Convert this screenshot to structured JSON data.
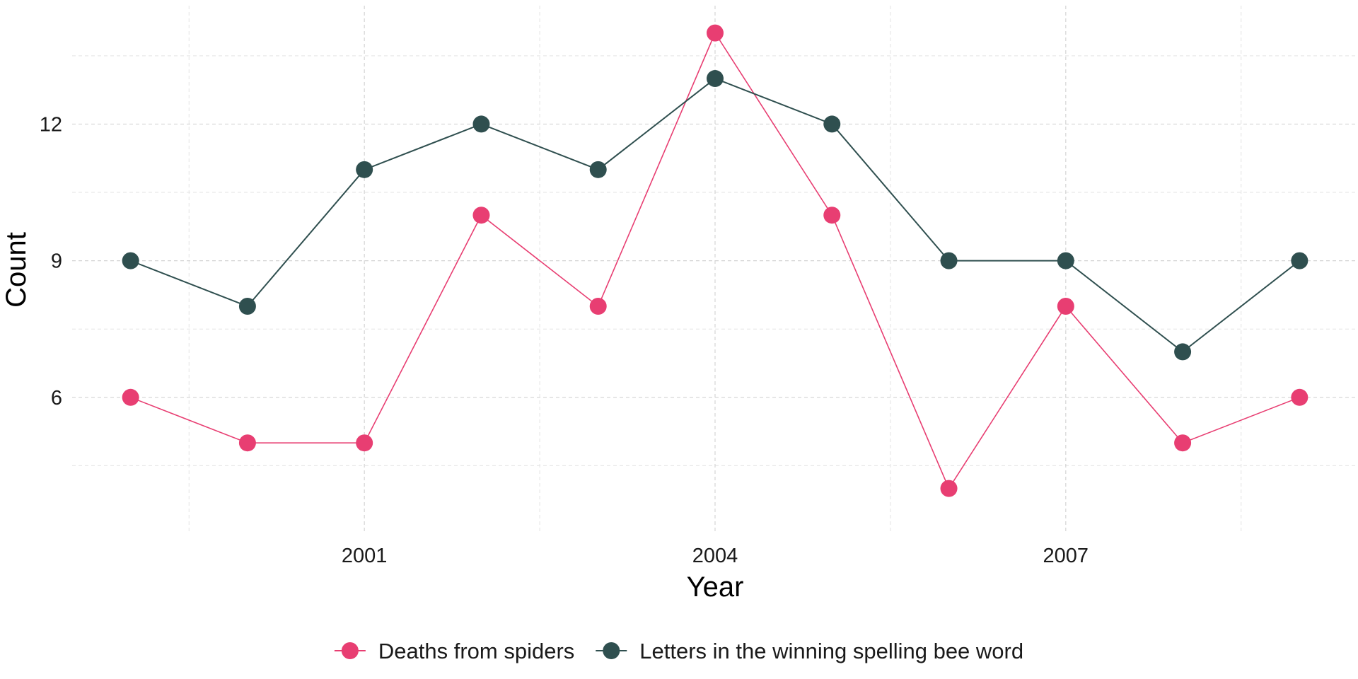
{
  "chart_data": {
    "type": "line",
    "title": "",
    "xlabel": "Year",
    "ylabel": "Count",
    "x": [
      1999,
      2000,
      2001,
      2002,
      2003,
      2004,
      2005,
      2006,
      2007,
      2008,
      2009
    ],
    "xlim": [
      1998.5,
      2009.5
    ],
    "ylim": [
      3.0,
      14.6
    ],
    "xticks": [
      2001,
      2004,
      2007
    ],
    "yticks": [
      6,
      9,
      12
    ],
    "x_minor_grid": [
      1999.5,
      2002.5,
      2005.5,
      2008.5
    ],
    "y_minor_grid": [
      4.5,
      7.5,
      10.5,
      13.5
    ],
    "grid": true,
    "legend_position": "bottom",
    "series": [
      {
        "name": "Deaths from spiders",
        "color": "#e83e72",
        "values": [
          6,
          5,
          5,
          10,
          8,
          14,
          10,
          4,
          8,
          5,
          6
        ]
      },
      {
        "name": "Letters in the winning spelling bee word",
        "color": "#2f4f4f",
        "values": [
          9,
          8,
          11,
          12,
          11,
          13,
          12,
          9,
          9,
          7,
          9
        ]
      }
    ]
  }
}
